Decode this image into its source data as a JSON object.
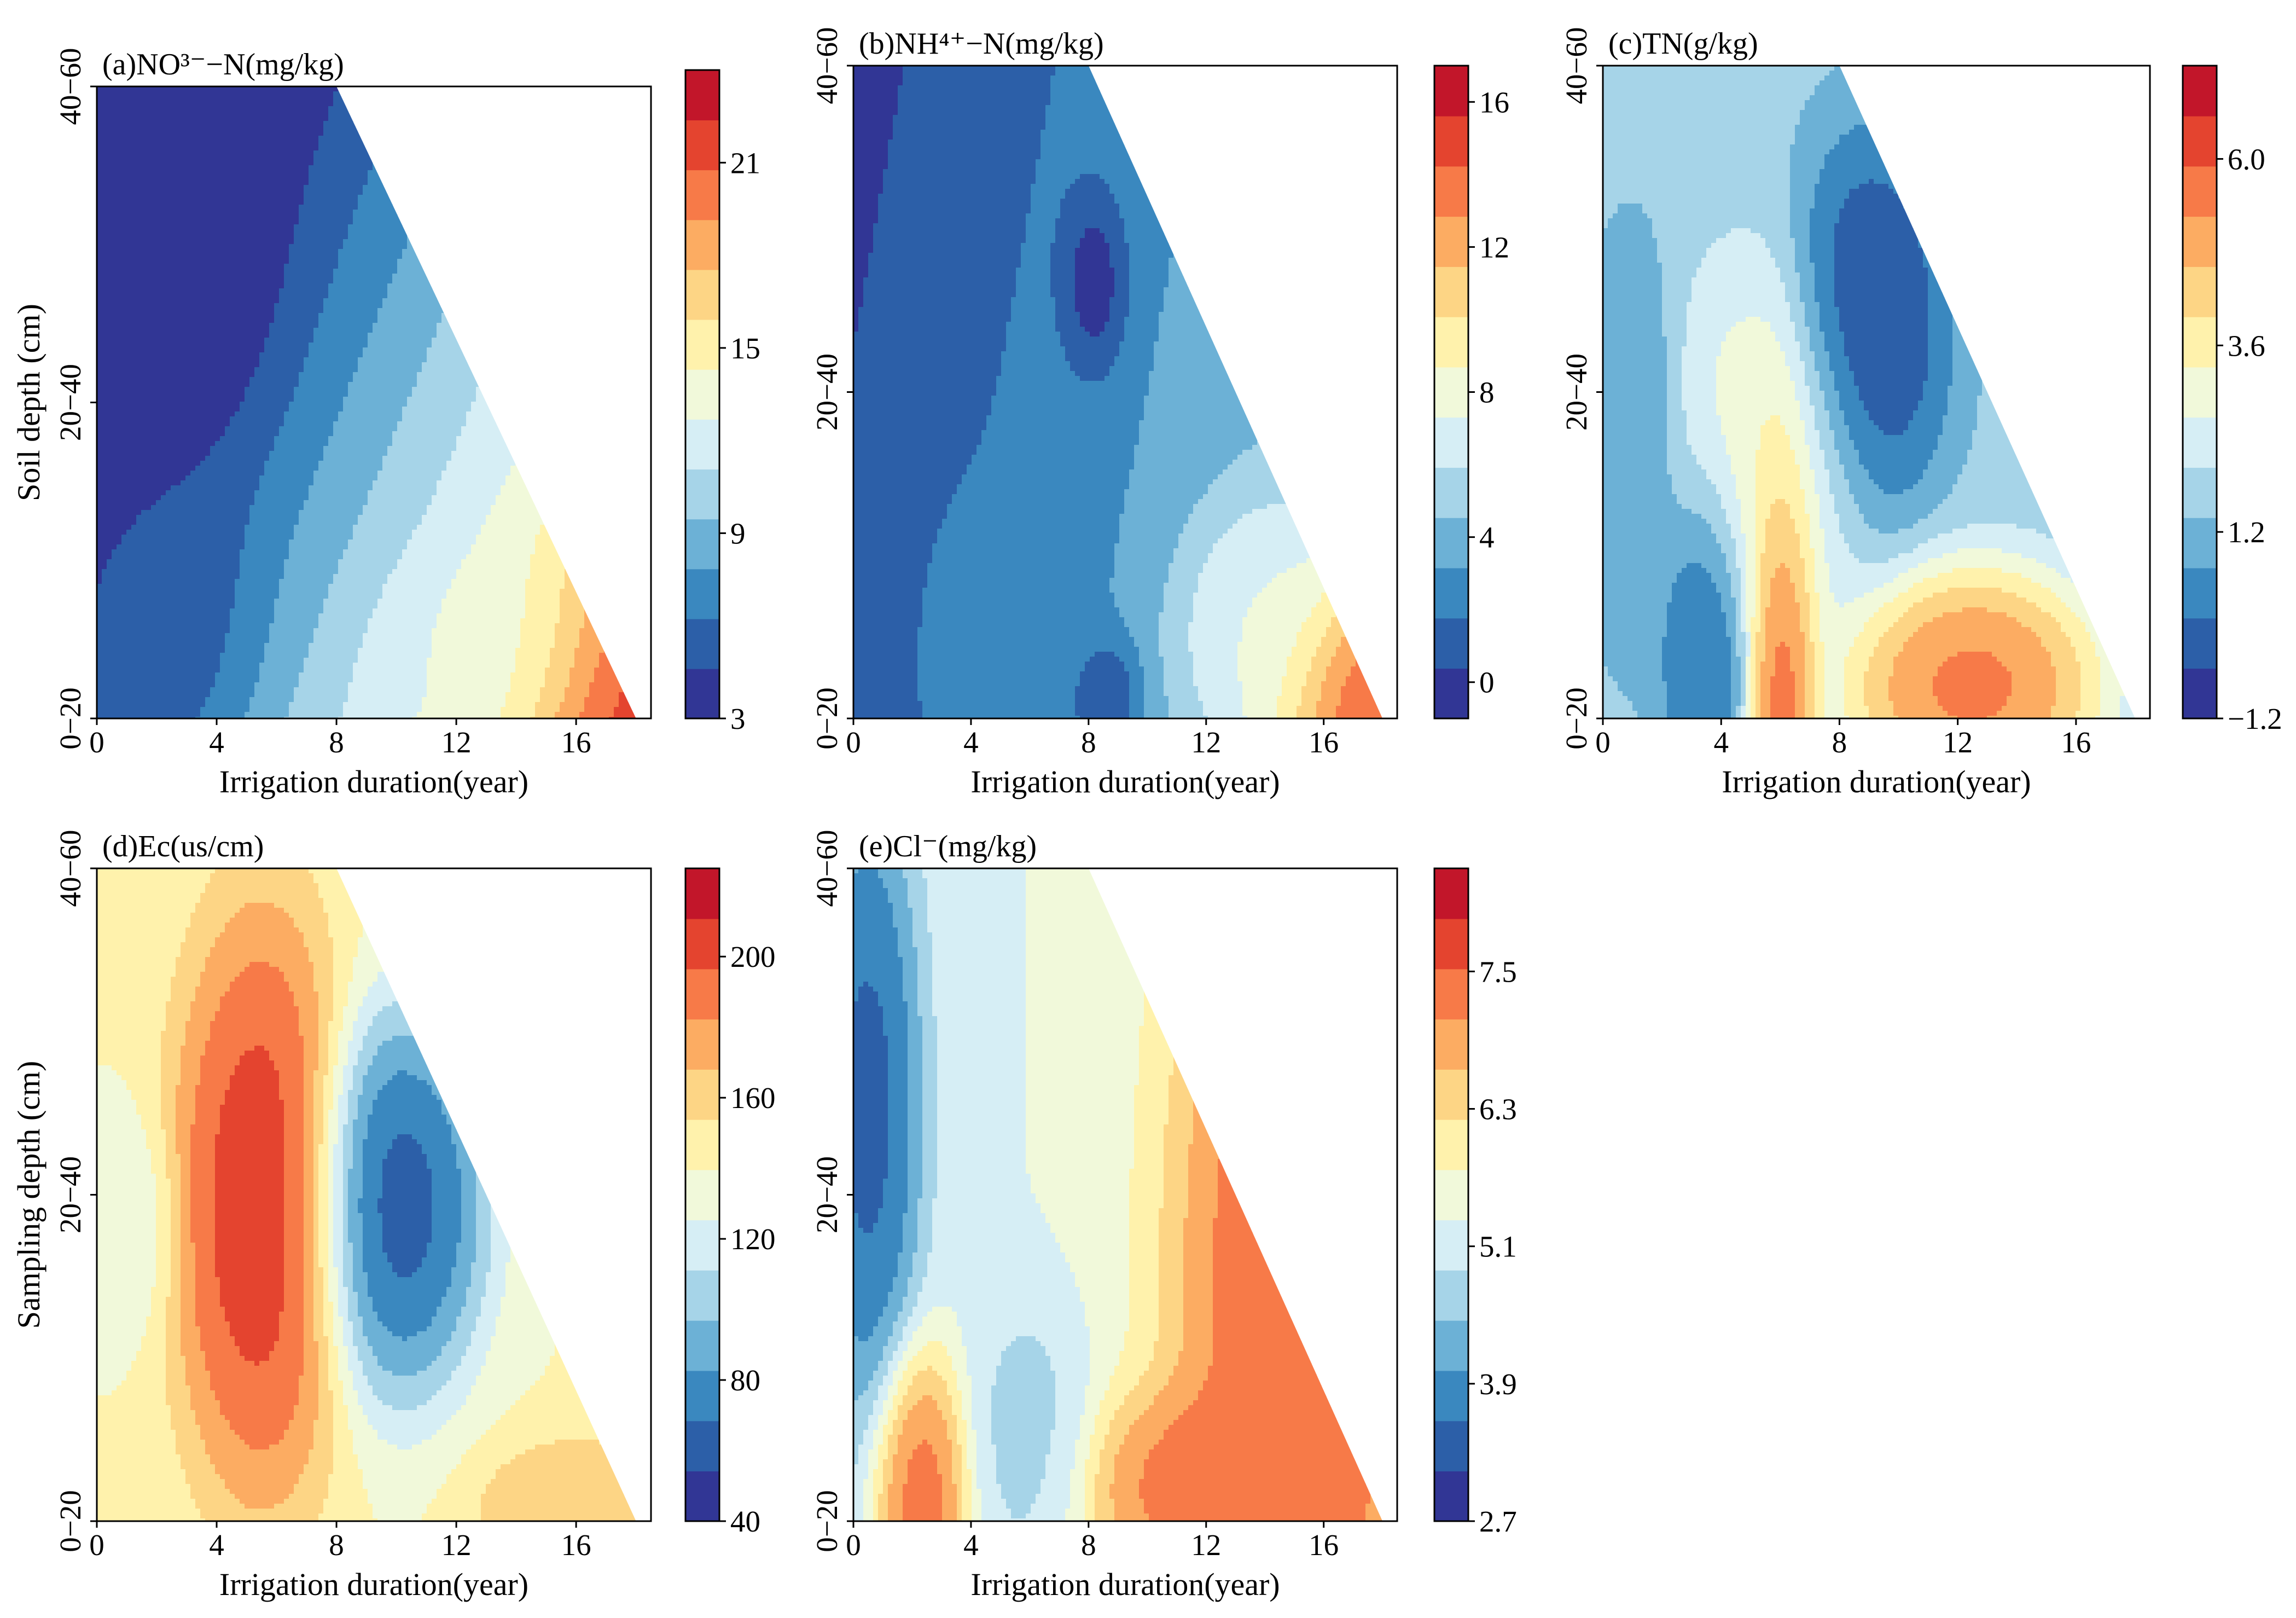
{
  "figure": {
    "palette": [
      "#313695",
      "#2c5fa8",
      "#3a88bf",
      "#6cb1d6",
      "#a6d4e8",
      "#d6eef5",
      "#f1f9da",
      "#fff2ac",
      "#fdd585",
      "#fcac62",
      "#f77a48",
      "#e4442f",
      "#c2162a"
    ]
  },
  "chart_data": [
    {
      "id": "a",
      "type": "contour",
      "title": "(a)NO³⁻−N(mg/kg)",
      "xlabel": "Irrigation duration(year)",
      "ylabel": "Soil depth (cm)",
      "x_ticks": [
        "0",
        "4",
        "8",
        "12",
        "16"
      ],
      "x_tick_values": [
        0,
        4,
        8,
        12,
        16
      ],
      "xlim": [
        0,
        18.5
      ],
      "y_categories": [
        "0−20",
        "20−40",
        "40−60"
      ],
      "valid_edge": [
        [
          0,
          60
        ],
        [
          8,
          60
        ],
        [
          18,
          0
        ]
      ],
      "colorbar_ticks": [
        "3",
        "9",
        "15",
        "21"
      ],
      "colorbar_tick_values": [
        3,
        9,
        15,
        21
      ],
      "colorbar_range": [
        3,
        24
      ],
      "features": [
        {
          "x": 2.5,
          "y": 44,
          "rx": 2.6,
          "ry": 14,
          "v": 3.3
        },
        {
          "x": 1.5,
          "y": 10,
          "rx": 2.5,
          "ry": 12,
          "v": 5.0
        },
        {
          "x": 17.5,
          "y": 1,
          "rx": 2.6,
          "ry": 10,
          "v": 23.5
        },
        {
          "x": 14,
          "y": 5,
          "rx": 3,
          "ry": 8,
          "v": 13.0
        },
        {
          "x": 11.5,
          "y": 2,
          "rx": 1.2,
          "ry": 5,
          "v": 12.5
        }
      ],
      "base": 5.0,
      "trend_x": 0.35,
      "trend_y": -0.05
    },
    {
      "id": "b",
      "type": "contour",
      "title": "(b)NH⁴⁺−N(mg/kg)",
      "xlabel": "Irrigation duration(year)",
      "ylabel": "",
      "x_ticks": [
        "0",
        "4",
        "8",
        "12",
        "16"
      ],
      "x_tick_values": [
        0,
        4,
        8,
        12,
        16
      ],
      "xlim": [
        0,
        18.5
      ],
      "y_categories": [
        "0−20",
        "20−40",
        "40−60"
      ],
      "valid_edge": [
        [
          0,
          60
        ],
        [
          8,
          60
        ],
        [
          18,
          0
        ]
      ],
      "colorbar_ticks": [
        "0",
        "4",
        "8",
        "12",
        "16"
      ],
      "colorbar_tick_values": [
        0,
        4,
        8,
        12,
        16
      ],
      "colorbar_range": [
        -1,
        17
      ],
      "features": [
        {
          "x": 8.2,
          "y": 40,
          "rx": 0.8,
          "ry": 6,
          "v": -0.8
        },
        {
          "x": 8.5,
          "y": 2,
          "rx": 0.9,
          "ry": 4,
          "v": 0.0
        },
        {
          "x": 5.5,
          "y": 8,
          "rx": 2,
          "ry": 9,
          "v": 3.0
        },
        {
          "x": 17.8,
          "y": 1,
          "rx": 2.6,
          "ry": 9,
          "v": 16.5
        },
        {
          "x": 14,
          "y": 8,
          "rx": 2.2,
          "ry": 9,
          "v": 8.0
        }
      ],
      "base": 1.0,
      "trend_x": 0.15,
      "trend_y": -0.01
    },
    {
      "id": "c",
      "type": "contour",
      "title": "(c)TN(g/kg)",
      "xlabel": "Irrigation duration(year)",
      "ylabel": "",
      "x_ticks": [
        "0",
        "4",
        "8",
        "12",
        "16"
      ],
      "x_tick_values": [
        0,
        4,
        8,
        12,
        16
      ],
      "xlim": [
        0,
        18.5
      ],
      "y_categories": [
        "0−20",
        "20−40",
        "40−60"
      ],
      "valid_edge": [
        [
          0,
          60
        ],
        [
          8,
          60
        ],
        [
          18,
          0
        ]
      ],
      "colorbar_ticks": [
        "−1.2",
        "1.2",
        "3.6",
        "6.0"
      ],
      "colorbar_tick_values": [
        -1.2,
        1.2,
        3.6,
        6.0
      ],
      "colorbar_range": [
        -1.2,
        7.2
      ],
      "features": [
        {
          "x": 6,
          "y": 4,
          "rx": 0.9,
          "ry": 18,
          "v": 6.8
        },
        {
          "x": 3.5,
          "y": 8,
          "rx": 1.2,
          "ry": 12,
          "v": -0.6
        },
        {
          "x": 9,
          "y": 36,
          "rx": 2,
          "ry": 13,
          "v": -1.2
        },
        {
          "x": 12.5,
          "y": 3,
          "rx": 3.2,
          "ry": 8,
          "v": 6.5
        },
        {
          "x": 5.5,
          "y": 24,
          "rx": 2.5,
          "ry": 14,
          "v": 3.5
        },
        {
          "x": 1,
          "y": 25,
          "rx": 1.2,
          "ry": 14,
          "v": 0.5
        }
      ],
      "base": 1.6,
      "trend_x": 0.0,
      "trend_y": 0.0
    },
    {
      "id": "d",
      "type": "contour",
      "title": "(d)Ec(us/cm)",
      "xlabel": "Irrigation duration(year)",
      "ylabel": "Sampling depth (cm)",
      "x_ticks": [
        "0",
        "4",
        "8",
        "12",
        "16"
      ],
      "x_tick_values": [
        0,
        4,
        8,
        12,
        16
      ],
      "xlim": [
        0,
        18.5
      ],
      "y_categories": [
        "0−20",
        "20−40",
        "40−60"
      ],
      "valid_edge": [
        [
          0,
          60
        ],
        [
          8,
          60
        ],
        [
          18,
          0
        ]
      ],
      "colorbar_ticks": [
        "40",
        "80",
        "120",
        "160",
        "200"
      ],
      "colorbar_tick_values": [
        40,
        80,
        120,
        160,
        200
      ],
      "colorbar_range": [
        40,
        225
      ],
      "features": [
        {
          "x": 5.5,
          "y": 29,
          "rx": 2.2,
          "ry": 20,
          "v": 225
        },
        {
          "x": 10,
          "y": 29,
          "rx": 2.2,
          "ry": 13,
          "v": 40
        },
        {
          "x": 16,
          "y": 1,
          "rx": 2.5,
          "ry": 5,
          "v": 175
        },
        {
          "x": 1,
          "y": 27,
          "rx": 1.2,
          "ry": 8,
          "v": 125
        }
      ],
      "base": 140,
      "trend_x": 0.0,
      "trend_y": 0.0
    },
    {
      "id": "e",
      "type": "contour",
      "title": "(e)Cl⁻(mg/kg)",
      "xlabel": "Irrigation duration(year)",
      "ylabel": "",
      "x_ticks": [
        "0",
        "4",
        "8",
        "12",
        "16"
      ],
      "x_tick_values": [
        0,
        4,
        8,
        12,
        16
      ],
      "xlim": [
        0,
        18.5
      ],
      "y_categories": [
        "0−20",
        "20−40",
        "40−60"
      ],
      "valid_edge": [
        [
          0,
          60
        ],
        [
          8,
          60
        ],
        [
          18,
          0
        ]
      ],
      "colorbar_ticks": [
        "2.7",
        "3.9",
        "5.1",
        "6.3",
        "7.5"
      ],
      "colorbar_tick_values": [
        2.7,
        3.9,
        5.1,
        6.3,
        7.5
      ],
      "colorbar_range": [
        2.7,
        8.4
      ],
      "features": [
        {
          "x": 0.5,
          "y": 38,
          "rx": 1.3,
          "ry": 20,
          "v": 3.0
        },
        {
          "x": 2.3,
          "y": 2,
          "rx": 1.2,
          "ry": 10,
          "v": 7.9
        },
        {
          "x": 6,
          "y": 8,
          "rx": 1.5,
          "ry": 10,
          "v": 4.6
        },
        {
          "x": 12,
          "y": 3,
          "rx": 3,
          "ry": 7,
          "v": 7.8
        },
        {
          "x": 15,
          "y": 22,
          "rx": 3,
          "ry": 30,
          "v": 8.0
        }
      ],
      "base": 5.0,
      "trend_x": 0.1,
      "trend_y": 0.0
    }
  ]
}
